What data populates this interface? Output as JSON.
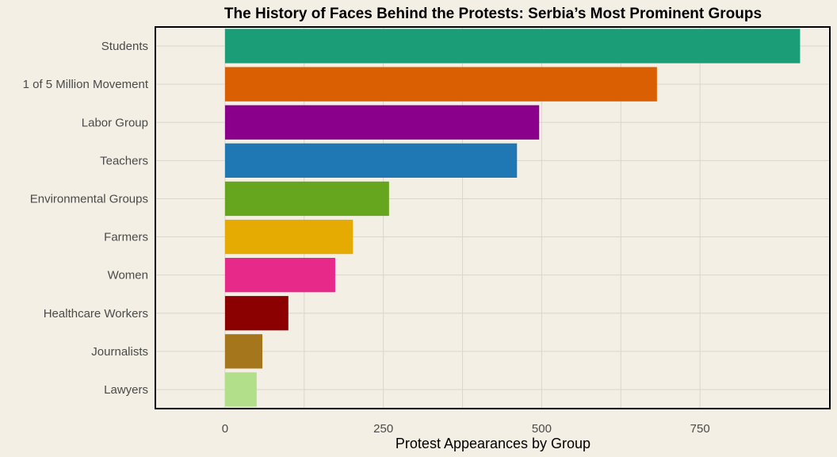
{
  "chart_data": {
    "type": "bar",
    "orientation": "horizontal",
    "title": "The History of Faces Behind the Protests: Serbia’s Most Prominent Groups",
    "xlabel": "Protest Appearances by Group",
    "ylabel": "",
    "xlim": [
      -110,
      955
    ],
    "xticks": [
      0,
      250,
      500,
      750
    ],
    "grid": true,
    "legend": "none",
    "categories": [
      "Students",
      "1 of 5 Million Movement",
      "Labor Group",
      "Teachers",
      "Environmental Groups",
      "Farmers",
      "Women",
      "Healthcare Workers",
      "Journalists",
      "Lawyers"
    ],
    "values": [
      908,
      682,
      496,
      461,
      259,
      202,
      174,
      100,
      59,
      50
    ],
    "colors": [
      "#1b9e77",
      "#d95f02",
      "#8b008b",
      "#1f78b4",
      "#66a61e",
      "#e6ab02",
      "#e7298a",
      "#8b0000",
      "#a6761d",
      "#b2df8a"
    ]
  }
}
